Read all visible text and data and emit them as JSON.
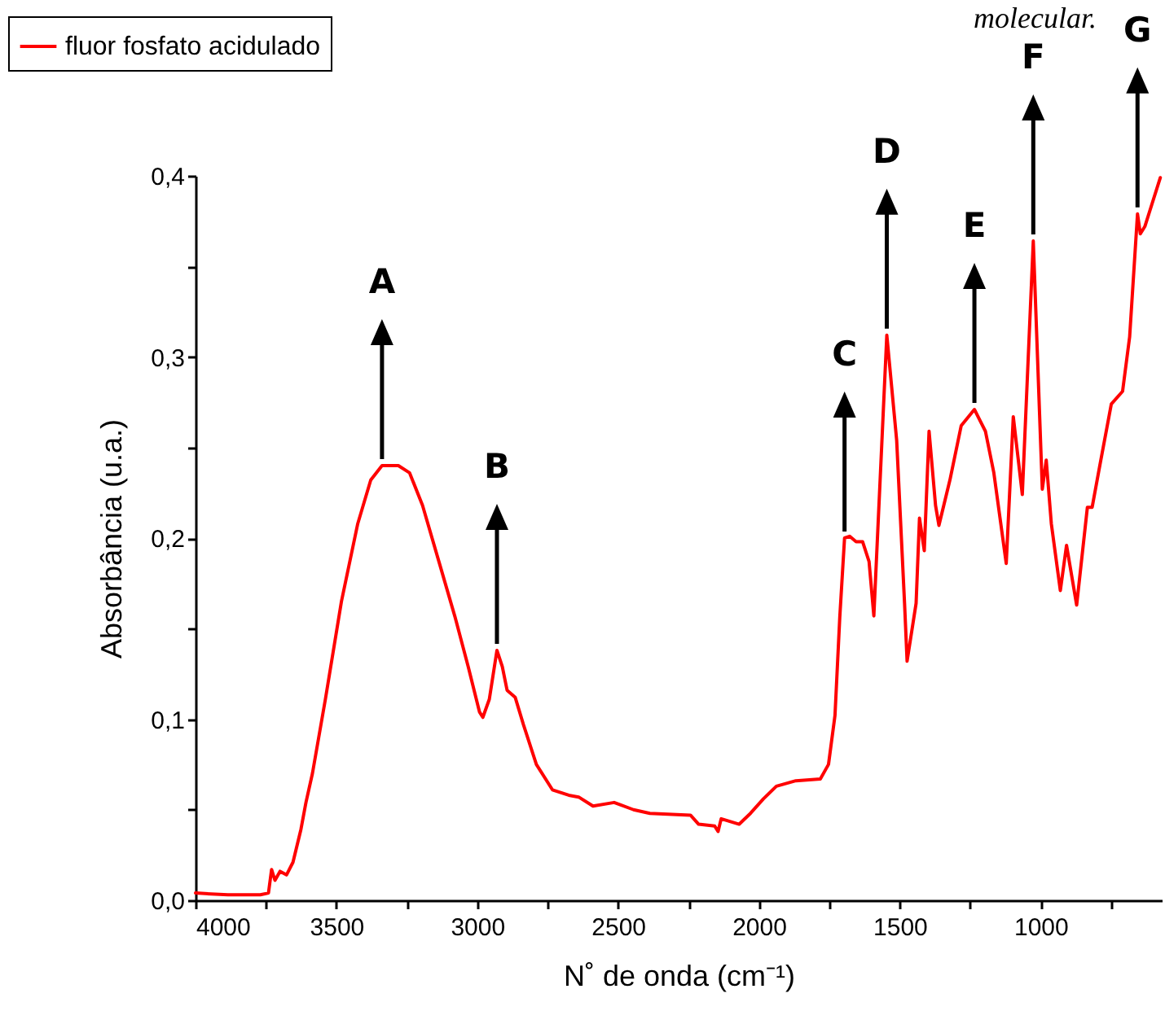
{
  "chart_data": {
    "type": "line",
    "xlabel": "N˚ de onda (cm⁻¹)",
    "ylabel": "Absorbância (u.a.)",
    "xlim": [
      4000,
      570
    ],
    "ylim": [
      0,
      0.4
    ],
    "xticks": [
      4000,
      {
        "value": 3750,
        "label": null
      },
      3500,
      {
        "value": 3250,
        "label": null
      },
      3000,
      {
        "value": 2750,
        "label": null
      },
      2500,
      {
        "value": 2250,
        "label": null
      },
      2000,
      {
        "value": 1750,
        "label": null
      },
      1500,
      {
        "value": 1250,
        "label": null
      },
      1000,
      {
        "value": 750,
        "label": null
      }
    ],
    "yticks": [
      {
        "value": 0,
        "label": "0,0"
      },
      {
        "value": 0.05,
        "label": null
      },
      {
        "value": 0.1,
        "label": "0,1"
      },
      {
        "value": 0.15,
        "label": null
      },
      {
        "value": 0.2,
        "label": "0,2"
      },
      {
        "value": 0.25,
        "label": null
      },
      {
        "value": 0.3,
        "label": "0,3"
      },
      {
        "value": 0.35,
        "label": null
      },
      {
        "value": 0.4,
        "label": "0,4"
      }
    ],
    "grid": false,
    "legend": "top left",
    "marker": "none",
    "line_style": "solid",
    "x": [
      4000,
      3885,
      3770,
      3741,
      3730,
      3718,
      3700,
      3677,
      3654,
      3626,
      3608,
      3585,
      3539,
      3482,
      3424,
      3378,
      3338,
      3280,
      3240,
      3194,
      3136,
      3078,
      3032,
      2992,
      2980,
      2957,
      2930,
      2911,
      2894,
      2865,
      2836,
      2790,
      2733,
      2675,
      2640,
      2589,
      2514,
      2445,
      2387,
      2243,
      2214,
      2157,
      2145,
      2134,
      2070,
      2030,
      1984,
      1938,
      1869,
      1782,
      1753,
      1730,
      1713,
      1696,
      1678,
      1655,
      1632,
      1609,
      1592,
      1546,
      1511,
      1483,
      1474,
      1442,
      1430,
      1413,
      1396,
      1373,
      1361,
      1322,
      1282,
      1235,
      1196,
      1166,
      1122,
      1097,
      1065,
      1026,
      994,
      980,
      962,
      930,
      908,
      872,
      834,
      817,
      791,
      749,
      709,
      684,
      656,
      646,
      630,
      575
    ],
    "series": [
      {
        "name": "fluor fosfato acidulado",
        "color": "#ff0000",
        "values": [
          0.004,
          0.003,
          0.003,
          0.004,
          0.017,
          0.011,
          0.016,
          0.014,
          0.021,
          0.039,
          0.054,
          0.07,
          0.111,
          0.165,
          0.208,
          0.232,
          0.24,
          0.24,
          0.236,
          0.218,
          0.187,
          0.156,
          0.129,
          0.104,
          0.101,
          0.111,
          0.138,
          0.129,
          0.116,
          0.112,
          0.097,
          0.075,
          0.061,
          0.058,
          0.057,
          0.052,
          0.054,
          0.05,
          0.048,
          0.047,
          0.042,
          0.041,
          0.038,
          0.045,
          0.042,
          0.048,
          0.056,
          0.063,
          0.066,
          0.067,
          0.075,
          0.102,
          0.156,
          0.2,
          0.201,
          0.198,
          0.198,
          0.187,
          0.157,
          0.312,
          0.254,
          0.164,
          0.132,
          0.164,
          0.211,
          0.193,
          0.259,
          0.218,
          0.207,
          0.232,
          0.262,
          0.271,
          0.259,
          0.236,
          0.186,
          0.267,
          0.224,
          0.364,
          0.227,
          0.243,
          0.208,
          0.171,
          0.196,
          0.163,
          0.217,
          0.217,
          0.239,
          0.274,
          0.281,
          0.311,
          0.379,
          0.368,
          0.372,
          0.399
        ]
      }
    ],
    "annotations": [
      "molecular.",
      {
        "text": "A",
        "x": 3338,
        "y": 0.24
      },
      {
        "text": "B",
        "x": 2930,
        "y": 0.138
      },
      {
        "text": "C",
        "x": 1696,
        "y": 0.2
      },
      {
        "text": "D",
        "x": 1546,
        "y": 0.312
      },
      {
        "text": "E",
        "x": 1235,
        "y": 0.271
      },
      {
        "text": "F",
        "x": 1026,
        "y": 0.364
      },
      {
        "text": "G",
        "x": 656,
        "y": 0.379
      }
    ]
  }
}
